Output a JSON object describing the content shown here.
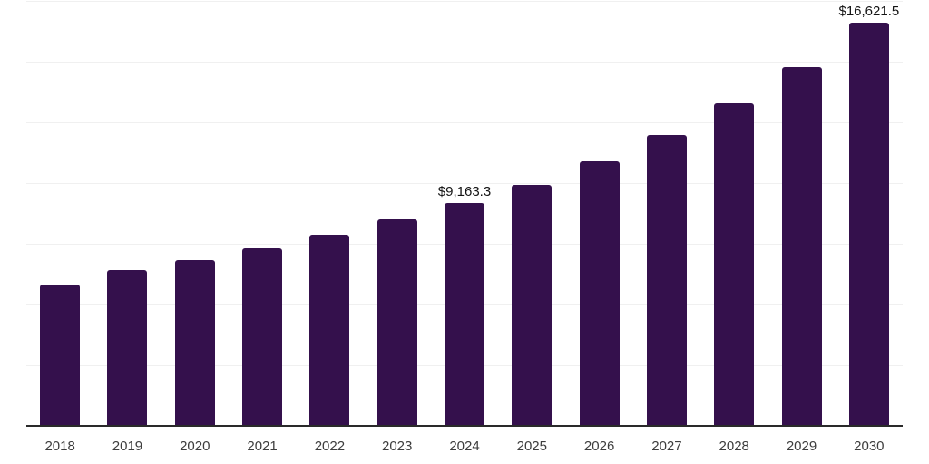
{
  "chart_data": {
    "type": "bar",
    "title": "",
    "xlabel": "",
    "ylabel": "",
    "categories": [
      "2018",
      "2019",
      "2020",
      "2021",
      "2022",
      "2023",
      "2024",
      "2025",
      "2026",
      "2027",
      "2028",
      "2029",
      "2030"
    ],
    "values": [
      5810,
      6410,
      6820,
      7305,
      7865,
      8498,
      9163.3,
      9930,
      10910,
      11960,
      13270,
      14780,
      16621.5
    ],
    "ylim": [
      0,
      17500
    ],
    "gridline_step": 2500,
    "grid": "horizontal-only",
    "legend": "none",
    "annotations": [
      {
        "category": "2024",
        "text": "$9,163.3"
      },
      {
        "category": "2030",
        "text": "$16,621.5"
      }
    ],
    "colors": {
      "bar": "#34104c",
      "gridline": "#f0f0f0",
      "axis_line": "#2a2a2a",
      "tick_label": "#3d3d3d",
      "annotation_label": "#141414",
      "background": "#ffffff"
    }
  }
}
